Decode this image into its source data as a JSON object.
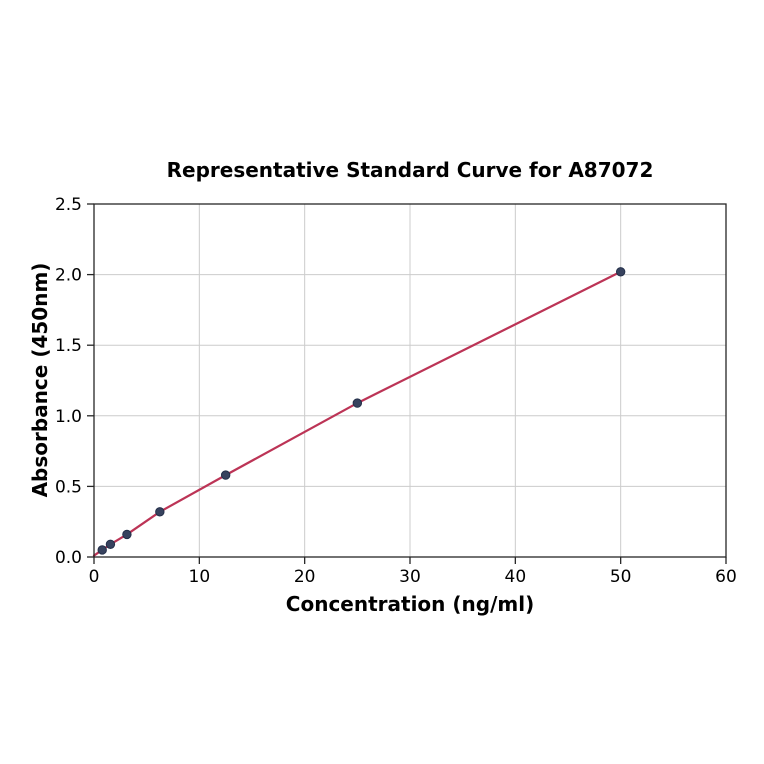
{
  "chart_data": {
    "type": "line",
    "title": "Representative Standard Curve for A87072",
    "xlabel": "Concentration (ng/ml)",
    "ylabel": "Absorbance (450nm)",
    "x": [
      0.78,
      1.56,
      3.125,
      6.25,
      12.5,
      25,
      50
    ],
    "y": [
      0.05,
      0.09,
      0.16,
      0.32,
      0.58,
      1.09,
      2.02
    ],
    "line_start": [
      0,
      0.01
    ],
    "xlim": [
      0,
      60
    ],
    "ylim": [
      0,
      2.5
    ],
    "xticks": [
      0,
      10,
      20,
      30,
      40,
      50,
      60
    ],
    "xtick_labels": [
      "0",
      "10",
      "20",
      "30",
      "40",
      "50",
      "60"
    ],
    "yticks": [
      0,
      0.5,
      1.0,
      1.5,
      2.0,
      2.5
    ],
    "ytick_labels": [
      "0.0",
      "0.5",
      "1.0",
      "1.5",
      "2.0",
      "2.5"
    ],
    "grid": true,
    "legend": null,
    "colors": {
      "line": "#bc3456",
      "marker_fill": "#37425e",
      "marker_edge": "#232f49",
      "grid": "#cccccc",
      "spine": "#262626",
      "text": "#000000",
      "background": "#ffffff"
    }
  }
}
